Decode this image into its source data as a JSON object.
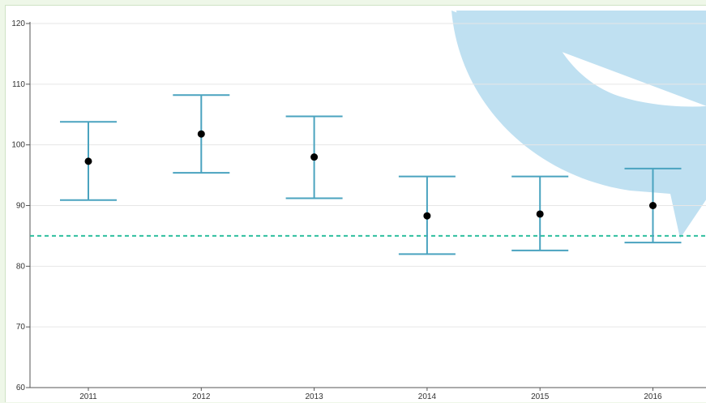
{
  "chart_data": {
    "type": "error-bar",
    "title": "",
    "xlabel": "",
    "ylabel": "",
    "ylim": [
      60,
      120
    ],
    "yticks": [
      60,
      70,
      80,
      90,
      100,
      110,
      120
    ],
    "ytick_labels": [
      "60",
      "70",
      "80",
      "90",
      "100",
      "110",
      "120"
    ],
    "categories": [
      "2011",
      "2012",
      "2013",
      "2014",
      "2015",
      "2016"
    ],
    "values": [
      97.3,
      101.8,
      98.0,
      88.3,
      88.6,
      90.0
    ],
    "lower": [
      90.9,
      95.4,
      91.2,
      82.0,
      82.6,
      83.9
    ],
    "upper": [
      103.8,
      108.2,
      104.7,
      94.8,
      94.8,
      96.1
    ],
    "reference_line": 85,
    "grid": true,
    "colors": {
      "error_bar": "#4aa3bf",
      "point": "#000000",
      "reference_line": "#2fbf9f",
      "gridline": "#e6e6e6",
      "background_graphic": "#bfe0f1"
    }
  }
}
